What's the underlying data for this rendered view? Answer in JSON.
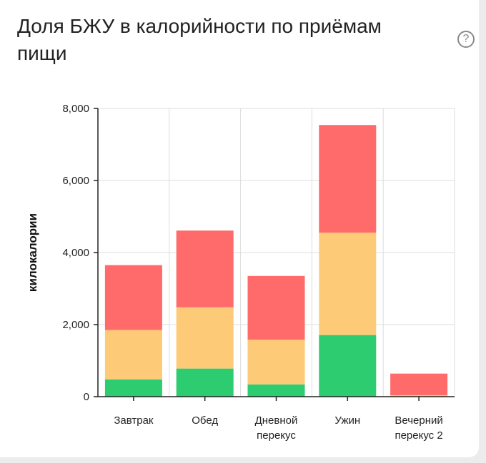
{
  "header": {
    "title": "Доля БЖУ в калорийности по приёмам пищи",
    "help_icon": "question-circle-icon",
    "help_glyph": "?"
  },
  "chart_data": {
    "type": "bar",
    "stacked": true,
    "title": "Доля БЖУ в калорийности по приёмам пищи",
    "xlabel": "",
    "ylabel": "килокалории",
    "ylim": [
      0,
      8000
    ],
    "yticks": [
      0,
      2000,
      4000,
      6000,
      8000
    ],
    "ytick_labels": [
      "0",
      "2,000",
      "4,000",
      "6,000",
      "8,000"
    ],
    "grid": true,
    "categories": [
      [
        "Завтрак"
      ],
      [
        "Обед"
      ],
      [
        "Дневной",
        "перекус"
      ],
      [
        "Ужин"
      ],
      [
        "Вечерний",
        "перекус 2"
      ]
    ],
    "series": [
      {
        "color": "#2ecc71",
        "values": [
          480,
          780,
          340,
          1710,
          0
        ]
      },
      {
        "color": "#fdcb77",
        "values": [
          1370,
          1700,
          1240,
          2840,
          40
        ]
      },
      {
        "color": "#ff6b6b",
        "values": [
          1800,
          2130,
          1770,
          2990,
          600
        ]
      }
    ]
  }
}
